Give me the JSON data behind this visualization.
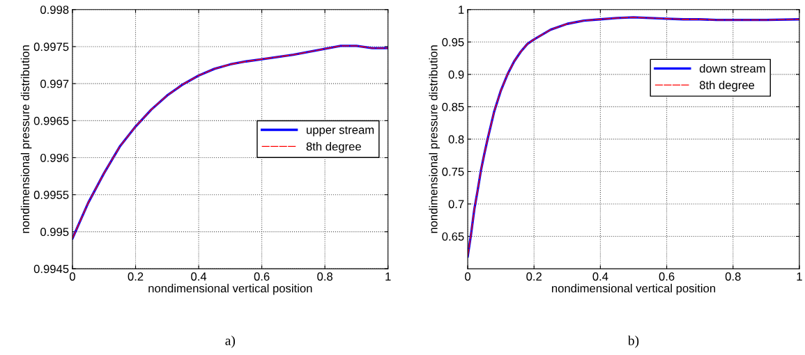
{
  "chart_data": [
    {
      "type": "line",
      "xlabel": "nondimensional vertical position",
      "ylabel": "nondimensional pressure distribution",
      "annotations": [
        "a)"
      ],
      "x": [
        0,
        0.05,
        0.1,
        0.15,
        0.2,
        0.25,
        0.3,
        0.35,
        0.4,
        0.45,
        0.5,
        0.55,
        0.6,
        0.65,
        0.7,
        0.75,
        0.8,
        0.85,
        0.9,
        0.95,
        1
      ],
      "series": [
        {
          "name": "upper stream",
          "color": "#0000ff",
          "values": [
            0.99491,
            0.99539,
            0.99579,
            0.99615,
            0.99642,
            0.99665,
            0.99684,
            0.99699,
            0.99711,
            0.9972,
            0.99726,
            0.9973,
            0.99733,
            0.99736,
            0.99739,
            0.99743,
            0.99747,
            0.99751,
            0.99751,
            0.99748,
            0.99748
          ]
        },
        {
          "name": "8th degree",
          "color": "#ff0000",
          "line_style": "dashed",
          "values": [
            0.99491,
            0.99539,
            0.99579,
            0.99615,
            0.99642,
            0.99665,
            0.99684,
            0.99699,
            0.99711,
            0.9972,
            0.99726,
            0.9973,
            0.99733,
            0.99736,
            0.99739,
            0.99743,
            0.99747,
            0.99751,
            0.99751,
            0.99748,
            0.99748
          ]
        }
      ],
      "xlim": [
        0,
        1
      ],
      "xticks": [
        0,
        0.2,
        0.4,
        0.6,
        0.8,
        1
      ],
      "ylim": [
        0.9945,
        0.998
      ],
      "yticks": [
        0.9945,
        0.995,
        0.9955,
        0.996,
        0.9965,
        0.997,
        0.9975,
        0.998
      ],
      "grid": true,
      "legend": "right"
    },
    {
      "type": "line",
      "xlabel": "nondimensional vertical position",
      "ylabel": "nondimensional pressure distribution",
      "annotations": [
        "b)"
      ],
      "x": [
        0,
        0.01,
        0.02,
        0.03,
        0.04,
        0.05,
        0.06,
        0.08,
        0.1,
        0.12,
        0.14,
        0.16,
        0.18,
        0.2,
        0.25,
        0.3,
        0.35,
        0.4,
        0.45,
        0.5,
        0.55,
        0.6,
        0.65,
        0.7,
        0.75,
        0.8,
        0.9,
        1
      ],
      "series": [
        {
          "name": "down stream",
          "color": "#0000ff",
          "values": [
            0.619,
            0.653,
            0.692,
            0.721,
            0.752,
            0.777,
            0.8,
            0.843,
            0.875,
            0.9,
            0.92,
            0.935,
            0.947,
            0.954,
            0.969,
            0.978,
            0.983,
            0.985,
            0.987,
            0.988,
            0.987,
            0.986,
            0.985,
            0.985,
            0.984,
            0.984,
            0.984,
            0.985
          ]
        },
        {
          "name": "8th degree",
          "color": "#ff0000",
          "line_style": "dashed",
          "values": [
            0.619,
            0.653,
            0.692,
            0.721,
            0.752,
            0.777,
            0.8,
            0.843,
            0.875,
            0.9,
            0.92,
            0.935,
            0.947,
            0.954,
            0.969,
            0.978,
            0.983,
            0.985,
            0.987,
            0.988,
            0.987,
            0.986,
            0.985,
            0.985,
            0.984,
            0.984,
            0.984,
            0.985
          ]
        }
      ],
      "xlim": [
        0,
        1
      ],
      "xticks": [
        0,
        0.2,
        0.4,
        0.6,
        0.8,
        1
      ],
      "ylim": [
        0.6,
        1
      ],
      "yticks": [
        0.65,
        0.7,
        0.75,
        0.8,
        0.85,
        0.9,
        0.95,
        1
      ],
      "grid": true,
      "legend": "top right"
    }
  ]
}
